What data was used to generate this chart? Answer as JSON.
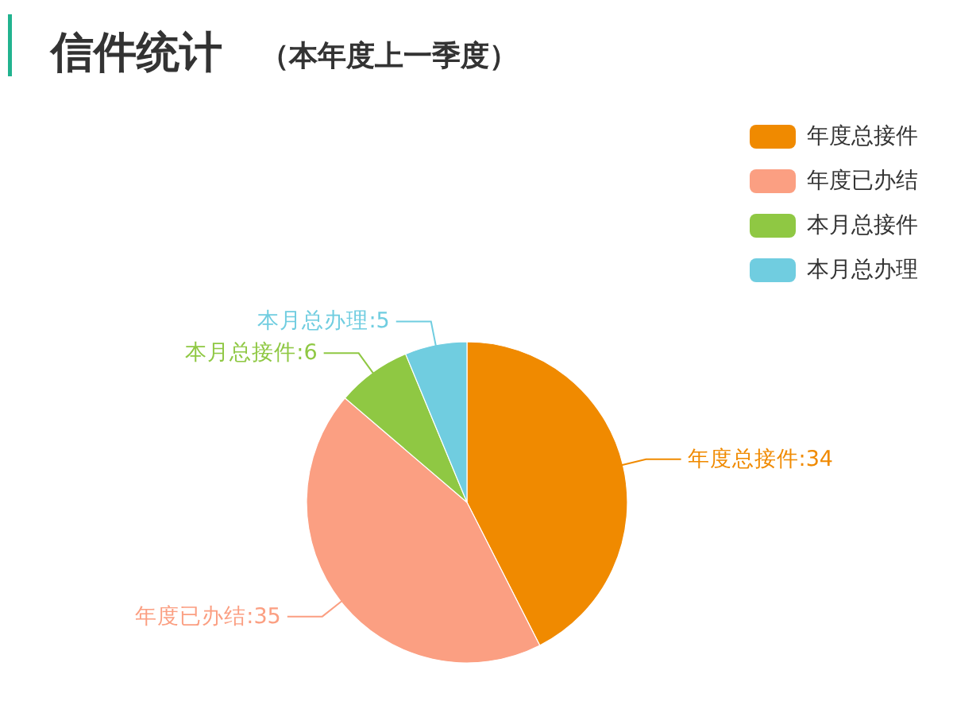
{
  "chart_data": {
    "type": "pie",
    "title": "信件统计",
    "subtitle": "（本年度上一季度）",
    "categories": [
      "年度总接件",
      "年度已办结",
      "本月总接件",
      "本月总办理"
    ],
    "values": [
      34,
      35,
      6,
      5
    ],
    "colors": [
      "#f08a00",
      "#fb9f82",
      "#8fc843",
      "#70cde0"
    ],
    "value_labels": [
      "年度总接件:34",
      "年度已办结:35",
      "本月总接件:6",
      "本月总办理:5"
    ],
    "legend": "top right"
  }
}
